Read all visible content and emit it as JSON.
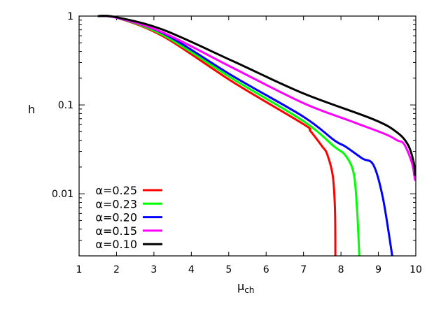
{
  "chart_data": {
    "type": "line",
    "title": "",
    "xlabel": "μ",
    "xlabel_sub": "ch",
    "ylabel": "h",
    "xlim": [
      1,
      10
    ],
    "ylim": [
      0.002,
      1
    ],
    "yscale": "log",
    "grid": false,
    "legend_position": "bottom-left",
    "xticks": [
      "1",
      "2",
      "3",
      "4",
      "5",
      "6",
      "7",
      "8",
      "9",
      "10"
    ],
    "yticks": [
      {
        "value": 1,
        "label": "1"
      },
      {
        "value": 0.1,
        "label": "0.1"
      },
      {
        "value": 0.01,
        "label": "0.01"
      }
    ],
    "series": [
      {
        "name": "α=0.25",
        "color": "#ff0000",
        "x": [
          1.5,
          2,
          3.25,
          5.12,
          6.99,
          7.18,
          7.5,
          7.63,
          7.78,
          7.84,
          7.85
        ],
        "y": [
          1,
          0.96,
          0.59,
          0.18,
          0.061,
          0.051,
          0.034,
          0.028,
          0.016,
          0.0066,
          0.002
        ]
      },
      {
        "name": "α=0.23",
        "color": "#00ff00",
        "x": [
          1.5,
          2,
          3.25,
          5.12,
          6.99,
          7.82,
          8.12,
          8.34,
          8.43,
          8.49
        ],
        "y": [
          1,
          0.96,
          0.61,
          0.195,
          0.066,
          0.034,
          0.027,
          0.017,
          0.0066,
          0.002
        ]
      },
      {
        "name": "α=0.20",
        "color": "#0000ff",
        "x": [
          1.5,
          2,
          3.25,
          5.12,
          6.99,
          7.82,
          8.12,
          8.57,
          8.87,
          9.12,
          9.37
        ],
        "y": [
          1,
          0.96,
          0.64,
          0.21,
          0.074,
          0.04,
          0.034,
          0.025,
          0.021,
          0.009,
          0.002
        ]
      },
      {
        "name": "α=0.15",
        "color": "#ff00ff",
        "x": [
          1.5,
          2,
          3.25,
          5.12,
          6.99,
          8.25,
          9.18,
          9.5,
          9.69,
          9.9,
          9.98
        ],
        "y": [
          1,
          0.96,
          0.65,
          0.26,
          0.105,
          0.066,
          0.047,
          0.04,
          0.036,
          0.022,
          0.014
        ]
      },
      {
        "name": "α=0.10",
        "color": "#000000",
        "x": [
          1.5,
          2,
          3.25,
          5.12,
          6.99,
          8.86,
          9.5,
          9.8,
          9.95,
          9.98
        ],
        "y": [
          1,
          0.97,
          0.7,
          0.31,
          0.135,
          0.069,
          0.049,
          0.035,
          0.022,
          0.016
        ]
      }
    ]
  }
}
